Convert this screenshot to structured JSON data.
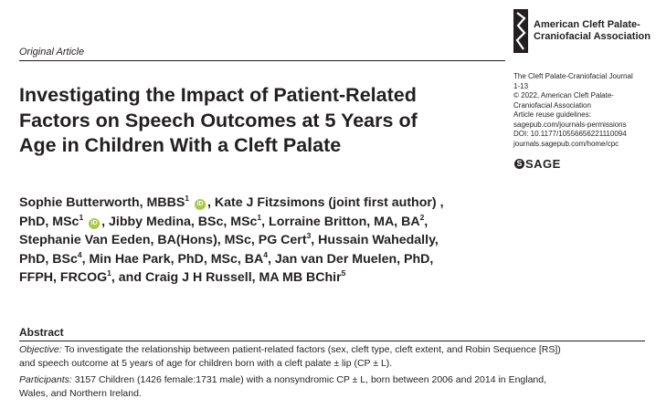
{
  "header": {
    "org_line1": "American Cleft Palate-",
    "org_line2": "Craniofacial Association",
    "article_type": "Original Article"
  },
  "journal_info": {
    "line1": "The Cleft Palate-Craniofacial Journal",
    "line2": "1-13",
    "line3": "© 2022, American Cleft Palate-",
    "line4": "Craniofacial Association",
    "line5": "Article reuse guidelines:",
    "line6": "sagepub.com/journals-permissions",
    "line7": "DOI: 10.1177/10556656221110094",
    "line8": "journals.sagepub.com/home/cpc",
    "publisher": "SAGE",
    "publisher_mark": "S"
  },
  "title": {
    "line1": "Investigating the Impact of Patient-Related",
    "line2": "Factors on Speech Outcomes at 5 Years of",
    "line3": "Age in Children With a Cleft Palate"
  },
  "authors": {
    "l1a": "Sophie Butterworth, MBBS",
    "l1a_sup": "1",
    "l1b": ", Kate J Fitzsimons (joint first author) ,",
    "l2a": "PhD, MSc",
    "l2a_sup": "1",
    "l2b": ", Jibby Medina, BSc, MSc",
    "l2b_sup": "1",
    "l2c": ", Lorraine Britton, MA, BA",
    "l2c_sup": "2",
    "l2d": ",",
    "l3a": "Stephanie Van Eeden, BA(Hons), MSc, PG Cert",
    "l3a_sup": "3",
    "l3b": ", Hussain Wahedally,",
    "l4a": "PhD, BSc",
    "l4a_sup": "4",
    "l4b": ", Min Hae Park, PhD, MSc, BA",
    "l4b_sup": "4",
    "l4c": ", Jan van Der Muelen, PhD,",
    "l5a": "FFPH, FRCOG",
    "l5a_sup": "1",
    "l5b": ", and Craig J H Russell, MA MB BChir",
    "l5b_sup": "5",
    "orcid_label": "iD"
  },
  "abstract": {
    "heading": "Abstract",
    "objective_label": "Objective:",
    "objective_line1": " To investigate the relationship between patient-related factors (sex, cleft type, cleft extent, and Robin Sequence [RS])",
    "objective_line2": "and speech outcome at 5 years of age for children born with a cleft palate ± lip (CP ± L).",
    "participants_label": "Participants:",
    "participants_line1": " 3157 Children (1426 female:1731 male) with a nonsyndromic CP ± L, born between 2006 and 2014 in England,",
    "participants_line2": "Wales, and Northern Ireland."
  }
}
